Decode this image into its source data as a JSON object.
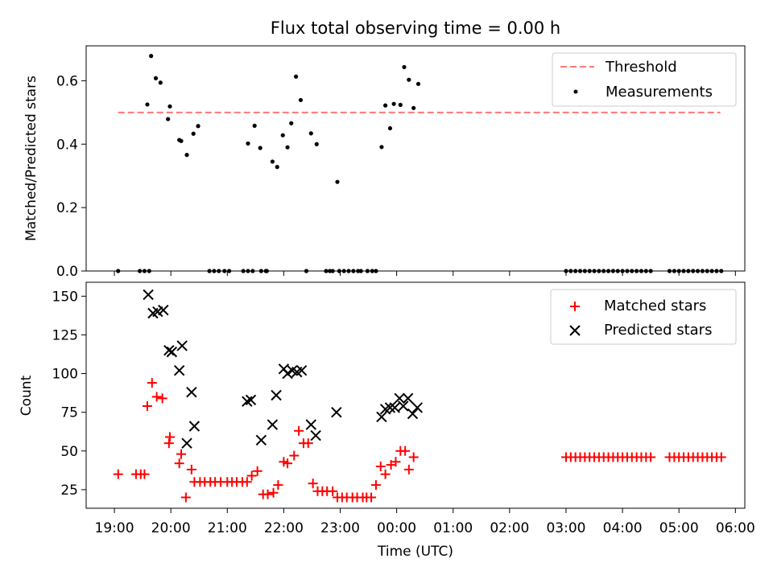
{
  "figure": {
    "title": "Flux total observing time = 0.00 h"
  },
  "chart_data": [
    {
      "type": "scatter",
      "panel": "top",
      "title": "Flux total observing time = 0.00 h",
      "xlabel": "",
      "ylabel": "Matched/Predicted stars",
      "x_range": [
        "18:30",
        "06:10"
      ],
      "ylim": [
        0,
        0.71
      ],
      "y_ticks": [
        0.0,
        0.2,
        0.4,
        0.6
      ],
      "y_tick_labels": [
        "0.0",
        "0.2",
        "0.4",
        "0.6"
      ],
      "x_ticks": [
        "19:00",
        "20:00",
        "21:00",
        "22:00",
        "23:00",
        "00:00",
        "01:00",
        "02:00",
        "03:00",
        "04:00",
        "05:00",
        "06:00"
      ],
      "legend": {
        "placement": "top-right",
        "entries": [
          "Threshold",
          "Measurements"
        ]
      },
      "threshold": {
        "name": "Threshold",
        "value": 0.5,
        "x_start": "19:04",
        "x_end": "05:44",
        "color": "#ff7777"
      },
      "series": [
        {
          "name": "Measurements",
          "color": "#000000",
          "points": [
            [
              "19:04",
              0
            ],
            [
              "19:27",
              0
            ],
            [
              "19:32",
              0
            ],
            [
              "19:37",
              0
            ],
            [
              "19:35",
              0.525
            ],
            [
              "19:39",
              0.678
            ],
            [
              "19:44",
              0.608
            ],
            [
              "19:49",
              0.594
            ],
            [
              "19:57",
              0.479
            ],
            [
              "19:59",
              0.519
            ],
            [
              "20:09",
              0.413
            ],
            [
              "20:11",
              0.41
            ],
            [
              "20:17",
              0.366
            ],
            [
              "20:24",
              0.433
            ],
            [
              "20:29",
              0.457
            ],
            [
              "20:41",
              0
            ],
            [
              "20:46",
              0
            ],
            [
              "20:51",
              0
            ],
            [
              "20:57",
              0
            ],
            [
              "21:02",
              0
            ],
            [
              "21:17",
              0
            ],
            [
              "21:22",
              0
            ],
            [
              "21:27",
              0
            ],
            [
              "21:36",
              0
            ],
            [
              "21:42",
              0
            ],
            [
              "21:22",
              0.402
            ],
            [
              "21:29",
              0.458
            ],
            [
              "21:35",
              0.388
            ],
            [
              "21:41",
              0
            ],
            [
              "21:48",
              0.345
            ],
            [
              "21:53",
              0.328
            ],
            [
              "21:59",
              0.428
            ],
            [
              "22:04",
              0.39
            ],
            [
              "22:08",
              0.466
            ],
            [
              "22:13",
              0.613
            ],
            [
              "22:18",
              0.539
            ],
            [
              "22:24",
              0
            ],
            [
              "22:29",
              0.434
            ],
            [
              "22:35",
              0.4
            ],
            [
              "22:45",
              0
            ],
            [
              "22:49",
              0
            ],
            [
              "22:52",
              0
            ],
            [
              "22:57",
              0.281
            ],
            [
              "22:59",
              0
            ],
            [
              "23:04",
              0
            ],
            [
              "23:09",
              0
            ],
            [
              "23:14",
              0
            ],
            [
              "23:19",
              0
            ],
            [
              "23:22",
              0
            ],
            [
              "23:29",
              0
            ],
            [
              "23:34",
              0
            ],
            [
              "23:38",
              0
            ],
            [
              "23:44",
              0.391
            ],
            [
              "23:48",
              0.522
            ],
            [
              "23:53",
              0.45
            ],
            [
              "23:57",
              0.527
            ],
            [
              "00:04",
              0.524
            ],
            [
              "00:08",
              0.643
            ],
            [
              "00:13",
              0.603
            ],
            [
              "00:18",
              0.514
            ],
            [
              "00:23",
              0.59
            ],
            [
              "03:00",
              0
            ],
            [
              "03:05",
              0
            ],
            [
              "03:10",
              0
            ],
            [
              "03:15",
              0
            ],
            [
              "03:20",
              0
            ],
            [
              "03:25",
              0
            ],
            [
              "03:30",
              0
            ],
            [
              "03:35",
              0
            ],
            [
              "03:40",
              0
            ],
            [
              "03:45",
              0
            ],
            [
              "03:50",
              0
            ],
            [
              "03:55",
              0
            ],
            [
              "04:00",
              0
            ],
            [
              "04:05",
              0
            ],
            [
              "04:10",
              0
            ],
            [
              "04:15",
              0
            ],
            [
              "04:20",
              0
            ],
            [
              "04:25",
              0
            ],
            [
              "04:30",
              0
            ],
            [
              "04:50",
              0
            ],
            [
              "04:55",
              0
            ],
            [
              "05:00",
              0
            ],
            [
              "05:05",
              0
            ],
            [
              "05:10",
              0
            ],
            [
              "05:15",
              0
            ],
            [
              "05:20",
              0
            ],
            [
              "05:25",
              0
            ],
            [
              "05:30",
              0
            ],
            [
              "05:35",
              0
            ],
            [
              "05:40",
              0
            ],
            [
              "05:45",
              0
            ]
          ]
        }
      ]
    },
    {
      "type": "scatter",
      "panel": "bottom",
      "xlabel": "Time (UTC)",
      "ylabel": "Count",
      "x_range": [
        "18:30",
        "06:10"
      ],
      "ylim": [
        13,
        159
      ],
      "y_ticks": [
        25,
        50,
        75,
        100,
        125,
        150
      ],
      "y_tick_labels": [
        "25",
        "50",
        "75",
        "100",
        "125",
        "150"
      ],
      "x_ticks": [
        "19:00",
        "20:00",
        "21:00",
        "22:00",
        "23:00",
        "00:00",
        "01:00",
        "02:00",
        "03:00",
        "04:00",
        "05:00",
        "06:00"
      ],
      "x_tick_labels": [
        "19:00",
        "20:00",
        "21:00",
        "22:00",
        "23:00",
        "00:00",
        "01:00",
        "02:00",
        "03:00",
        "04:00",
        "05:00",
        "06:00"
      ],
      "legend": {
        "placement": "top-right",
        "entries": [
          "Matched stars",
          "Predicted stars"
        ]
      },
      "series": [
        {
          "name": "Matched stars",
          "marker": "plus",
          "color": "#ff0000",
          "points": [
            [
              "19:04",
              35
            ],
            [
              "19:23",
              35
            ],
            [
              "19:28",
              35
            ],
            [
              "19:32",
              35
            ],
            [
              "19:35",
              79
            ],
            [
              "19:40",
              94
            ],
            [
              "19:45",
              85
            ],
            [
              "19:51",
              84
            ],
            [
              "19:58",
              55
            ],
            [
              "19:59",
              59
            ],
            [
              "20:09",
              42
            ],
            [
              "20:11",
              48
            ],
            [
              "20:16",
              20
            ],
            [
              "20:22",
              38
            ],
            [
              "20:25",
              30
            ],
            [
              "20:31",
              30
            ],
            [
              "20:36",
              30
            ],
            [
              "20:42",
              30
            ],
            [
              "20:47",
              30
            ],
            [
              "20:53",
              30
            ],
            [
              "21:00",
              30
            ],
            [
              "21:05",
              30
            ],
            [
              "21:10",
              30
            ],
            [
              "21:16",
              30
            ],
            [
              "21:21",
              30
            ],
            [
              "21:26",
              34
            ],
            [
              "21:32",
              37
            ],
            [
              "21:38",
              22
            ],
            [
              "21:43",
              22
            ],
            [
              "21:49",
              23
            ],
            [
              "21:54",
              28
            ],
            [
              "22:00",
              43
            ],
            [
              "22:04",
              42
            ],
            [
              "22:11",
              47
            ],
            [
              "22:16",
              63
            ],
            [
              "22:21",
              55
            ],
            [
              "22:26",
              55
            ],
            [
              "22:31",
              29
            ],
            [
              "22:36",
              24
            ],
            [
              "22:41",
              24
            ],
            [
              "22:46",
              24
            ],
            [
              "22:52",
              24
            ],
            [
              "22:57",
              20
            ],
            [
              "23:02",
              20
            ],
            [
              "23:07",
              20
            ],
            [
              "23:13",
              20
            ],
            [
              "23:18",
              20
            ],
            [
              "23:24",
              20
            ],
            [
              "23:28",
              20
            ],
            [
              "23:33",
              20
            ],
            [
              "23:38",
              28
            ],
            [
              "23:43",
              40
            ],
            [
              "23:48",
              35
            ],
            [
              "23:54",
              41
            ],
            [
              "23:59",
              43
            ],
            [
              "00:04",
              50
            ],
            [
              "00:09",
              50
            ],
            [
              "00:13",
              38
            ],
            [
              "00:18",
              46
            ],
            [
              "03:00",
              46
            ],
            [
              "03:05",
              46
            ],
            [
              "03:10",
              46
            ],
            [
              "03:15",
              46
            ],
            [
              "03:20",
              46
            ],
            [
              "03:25",
              46
            ],
            [
              "03:30",
              46
            ],
            [
              "03:35",
              46
            ],
            [
              "03:40",
              46
            ],
            [
              "03:45",
              46
            ],
            [
              "03:50",
              46
            ],
            [
              "03:55",
              46
            ],
            [
              "04:00",
              46
            ],
            [
              "04:05",
              46
            ],
            [
              "04:10",
              46
            ],
            [
              "04:15",
              46
            ],
            [
              "04:20",
              46
            ],
            [
              "04:25",
              46
            ],
            [
              "04:30",
              46
            ],
            [
              "04:50",
              46
            ],
            [
              "04:55",
              46
            ],
            [
              "05:00",
              46
            ],
            [
              "05:05",
              46
            ],
            [
              "05:10",
              46
            ],
            [
              "05:15",
              46
            ],
            [
              "05:20",
              46
            ],
            [
              "05:25",
              46
            ],
            [
              "05:30",
              46
            ],
            [
              "05:35",
              46
            ],
            [
              "05:40",
              46
            ],
            [
              "05:45",
              46
            ]
          ]
        },
        {
          "name": "Predicted stars",
          "marker": "x",
          "color": "#000000",
          "points": [
            [
              "19:36",
              151
            ],
            [
              "19:41",
              139
            ],
            [
              "19:46",
              140
            ],
            [
              "19:52",
              141
            ],
            [
              "19:58",
              115
            ],
            [
              "20:01",
              114
            ],
            [
              "20:09",
              102
            ],
            [
              "20:12",
              118
            ],
            [
              "20:17",
              55
            ],
            [
              "20:22",
              88
            ],
            [
              "20:25",
              66
            ],
            [
              "21:21",
              82
            ],
            [
              "21:25",
              83
            ],
            [
              "21:36",
              57
            ],
            [
              "21:48",
              67
            ],
            [
              "21:52",
              86
            ],
            [
              "22:00",
              103
            ],
            [
              "22:04",
              100
            ],
            [
              "22:09",
              102
            ],
            [
              "22:14",
              101
            ],
            [
              "22:19",
              102
            ],
            [
              "22:29",
              67
            ],
            [
              "22:34",
              60
            ],
            [
              "22:56",
              75
            ],
            [
              "23:44",
              72
            ],
            [
              "23:48",
              77
            ],
            [
              "23:53",
              78
            ],
            [
              "23:58",
              78
            ],
            [
              "00:03",
              84
            ],
            [
              "00:07",
              79
            ],
            [
              "00:12",
              84
            ],
            [
              "00:17",
              74
            ],
            [
              "00:22",
              78
            ]
          ]
        }
      ]
    }
  ]
}
